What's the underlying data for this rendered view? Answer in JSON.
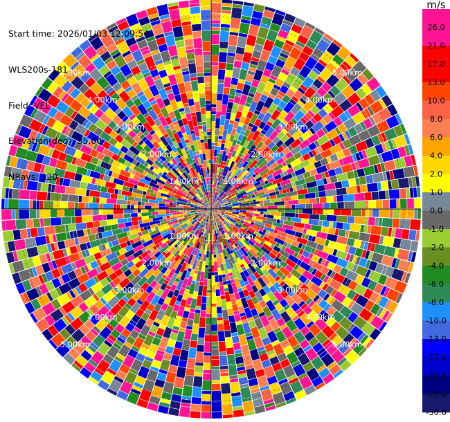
{
  "header": {
    "start_time": "Start time: 2026/01/03 12:09:54",
    "instrument": "WLS200s-181",
    "field": "Field: VEL",
    "elevation": "Elevation(deg): 35.00",
    "nrays": "NRays: 120"
  },
  "chart_data": {
    "type": "ppi",
    "field": "VEL",
    "elevation_deg": 35.0,
    "n_rays": 120,
    "range_rings_km": [
      1.0,
      2.0,
      3.0,
      4.0,
      5.0
    ],
    "range_ring_labels": [
      "1.00km",
      "2.00km",
      "3.00km",
      "4.00km",
      "5.00km"
    ],
    "max_range_km": 5.45,
    "colorbar": {
      "unit": "m/s",
      "tick_labels": [
        "26.0",
        "21.0",
        "17.0",
        "13.0",
        "10.0",
        "8.0",
        "6.0",
        "4.0",
        "2.0",
        "1.0",
        "0.0",
        "-1.0",
        "-2.0",
        "-4.0",
        "-6.0",
        "-8.0",
        "-10.0",
        "-13.0",
        "-17.0",
        "-21.0",
        "-26.0",
        "-30.0"
      ],
      "colors": [
        "#ff1493",
        "#ff1493",
        "#ff0000",
        "#ff0000",
        "#ff4500",
        "#ff6347",
        "#ff7f50",
        "#ffa500",
        "#ffd700",
        "#ffff00",
        "#778899",
        "#696969",
        "#9acd32",
        "#6b8e23",
        "#228b22",
        "#2e8b57",
        "#1e90ff",
        "#4169e1",
        "#0000ff",
        "#0000cd",
        "#000080",
        "#191970"
      ]
    }
  }
}
